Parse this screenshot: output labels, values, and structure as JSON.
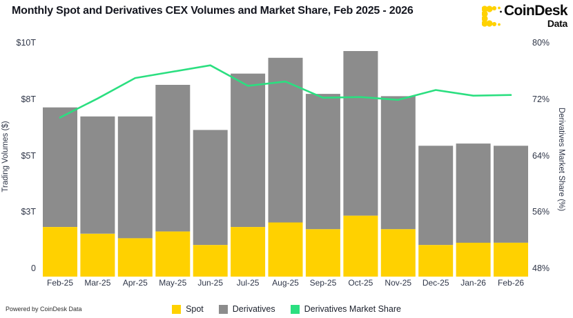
{
  "header": {
    "title": "Monthly Spot and Derivatives CEX Volumes and Market Share, Feb 2025 - 2026"
  },
  "logo": {
    "name": "CoinDesk",
    "sub": "Data",
    "icon_color": "#FFD200",
    "icon_dot_color": "#0A0A0A",
    "text_color": "#0A0A0A"
  },
  "footer": {
    "powered_by": "Powered by CoinDesk Data"
  },
  "legend": {
    "items": [
      {
        "label": "Spot",
        "color": "#FFD100"
      },
      {
        "label": "Derivatives",
        "color": "#8C8C8C"
      },
      {
        "label": "Derivatives Market Share",
        "color": "#2BDF80"
      }
    ]
  },
  "axes": {
    "left": {
      "title": "Trading Volumes ($)",
      "ticks": [
        "$10T",
        "$8T",
        "$5T",
        "$3T",
        "0"
      ]
    },
    "right": {
      "title": "Derivatives Market Share (%)",
      "ticks": [
        "80%",
        "72%",
        "64%",
        "56%",
        "48%"
      ]
    }
  },
  "chart_data": {
    "type": "bar",
    "stacked": true,
    "grid": false,
    "legend_position": "bottom",
    "title": "Monthly Spot and Derivatives CEX Volumes and Market Share, Feb 2025 - 2026",
    "xlabel": "",
    "left_ylabel": "Trading Volumes ($)",
    "right_ylabel": "Derivatives Market Share (%)",
    "left_ylim": [
      0,
      10
    ],
    "right_ylim": [
      48,
      80
    ],
    "left_unit": "trillion USD",
    "right_unit": "percent",
    "categories": [
      "Feb-25",
      "Mar-25",
      "Apr-25",
      "May-25",
      "Jun-25",
      "Jul-25",
      "Aug-25",
      "Sep-25",
      "Oct-25",
      "Nov-25",
      "Dec-25",
      "Jan-26",
      "Feb-26"
    ],
    "series": [
      {
        "name": "Spot",
        "type": "bar",
        "axis": "left",
        "color": "#FFD100",
        "values": [
          2.2,
          1.9,
          1.7,
          2.0,
          1.4,
          2.2,
          2.4,
          2.1,
          2.7,
          2.1,
          1.4,
          1.5,
          1.5
        ]
      },
      {
        "name": "Derivatives",
        "type": "bar",
        "axis": "left",
        "color": "#8C8C8C",
        "values": [
          5.3,
          5.2,
          5.4,
          6.5,
          5.1,
          6.8,
          7.3,
          6.0,
          7.3,
          5.9,
          4.4,
          4.4,
          4.3
        ]
      },
      {
        "name": "Derivatives Market Share",
        "type": "line",
        "axis": "right",
        "color": "#2BDF80",
        "values": [
          69.3,
          72.0,
          74.9,
          75.8,
          76.7,
          73.8,
          74.4,
          72.1,
          72.2,
          71.8,
          73.2,
          72.4,
          72.5
        ]
      }
    ]
  }
}
